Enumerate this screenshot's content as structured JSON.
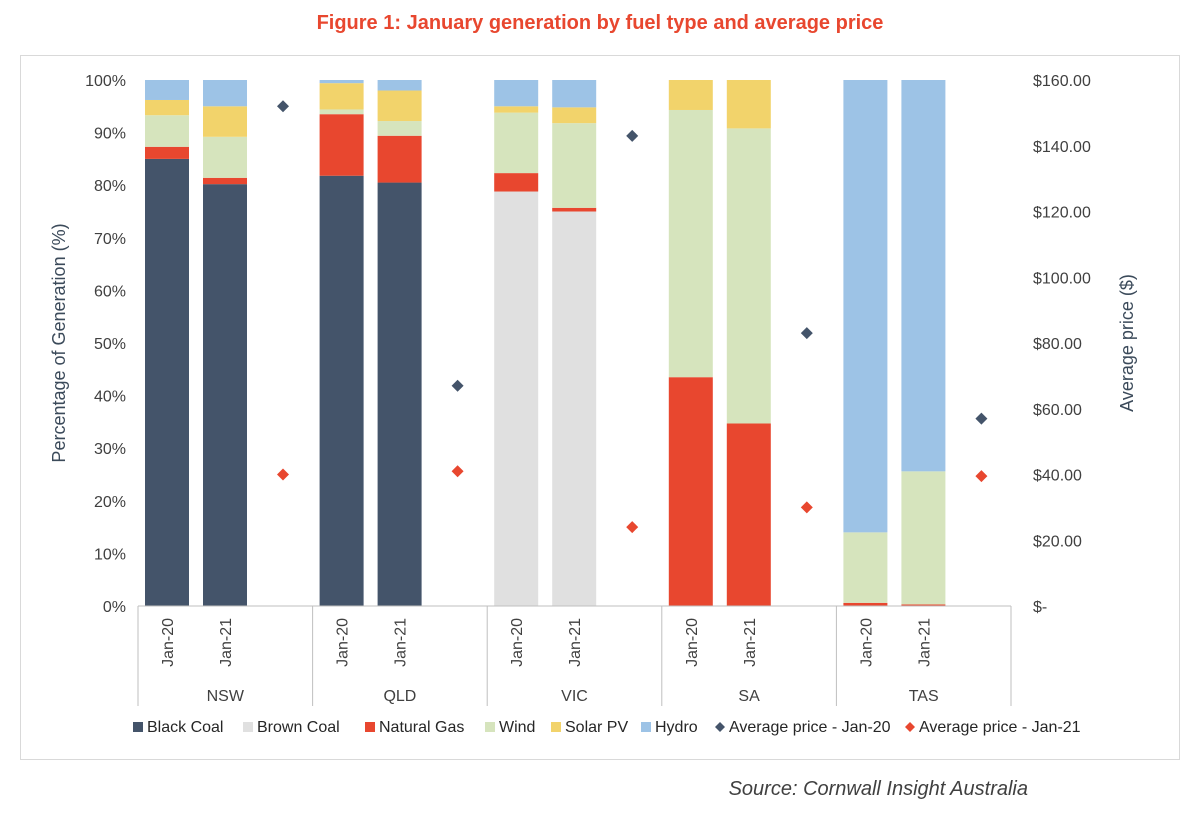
{
  "title": "Figure 1: January generation by fuel type and average price",
  "source": "Source: Cornwall Insight Australia",
  "chart_data": {
    "type": "bar",
    "subtype": "stacked-100-percent-with-secondary-scatter",
    "title": "Figure 1: January generation by fuel type and average price",
    "ylabel": "Percentage of Generation (%)",
    "y2label": "Average price ($)",
    "ylim": [
      0,
      100
    ],
    "y2lim": [
      0,
      160
    ],
    "yticks": [
      "0%",
      "10%",
      "20%",
      "30%",
      "40%",
      "50%",
      "60%",
      "70%",
      "80%",
      "90%",
      "100%"
    ],
    "y2ticks": [
      "$-",
      "$20.00",
      "$40.00",
      "$60.00",
      "$80.00",
      "$100.00",
      "$120.00",
      "$140.00",
      "$160.00"
    ],
    "groups": [
      "NSW",
      "QLD",
      "VIC",
      "SA",
      "TAS"
    ],
    "periods": [
      "Jan-20",
      "Jan-21"
    ],
    "grid": false,
    "legend_position": "bottom",
    "series": [
      {
        "name": "Black Coal",
        "color": "#44546a",
        "values": [
          [
            85,
            80.2
          ],
          [
            81.8,
            80.5
          ],
          [
            0,
            0
          ],
          [
            0,
            0
          ],
          [
            0,
            0
          ]
        ]
      },
      {
        "name": "Brown Coal",
        "color": "#e0e0e0",
        "values": [
          [
            0,
            0
          ],
          [
            0,
            0
          ],
          [
            78.8,
            75
          ],
          [
            0,
            0
          ],
          [
            0,
            0
          ]
        ]
      },
      {
        "name": "Natural Gas",
        "color": "#e8472f",
        "values": [
          [
            2.3,
            1.2
          ],
          [
            11.7,
            8.9
          ],
          [
            3.5,
            0.7
          ],
          [
            43.5,
            34.7
          ],
          [
            0.6,
            0.3
          ]
        ]
      },
      {
        "name": "Wind",
        "color": "#d6e4bd",
        "values": [
          [
            6,
            7.8
          ],
          [
            0.9,
            2.8
          ],
          [
            11.5,
            16.1
          ],
          [
            50.8,
            56.1
          ],
          [
            13.4,
            25.3
          ]
        ]
      },
      {
        "name": "Solar PV",
        "color": "#f2d36b",
        "values": [
          [
            2.9,
            5.8
          ],
          [
            5,
            5.8
          ],
          [
            1.2,
            3
          ],
          [
            5.7,
            9.2
          ],
          [
            0,
            0
          ]
        ]
      },
      {
        "name": "Hydro",
        "color": "#9dc3e6",
        "values": [
          [
            3.8,
            5
          ],
          [
            0.6,
            2
          ],
          [
            5,
            5.2
          ],
          [
            0,
            0
          ],
          [
            86,
            74.4
          ]
        ]
      }
    ],
    "price_series": [
      {
        "name": "Average price - Jan-20",
        "color": "#44546a",
        "marker": "diamond",
        "values": [
          152,
          67,
          143,
          83,
          57
        ]
      },
      {
        "name": "Average price - Jan-21",
        "color": "#e8472f",
        "marker": "diamond",
        "values": [
          40,
          41,
          24,
          30,
          39.5
        ]
      }
    ]
  }
}
